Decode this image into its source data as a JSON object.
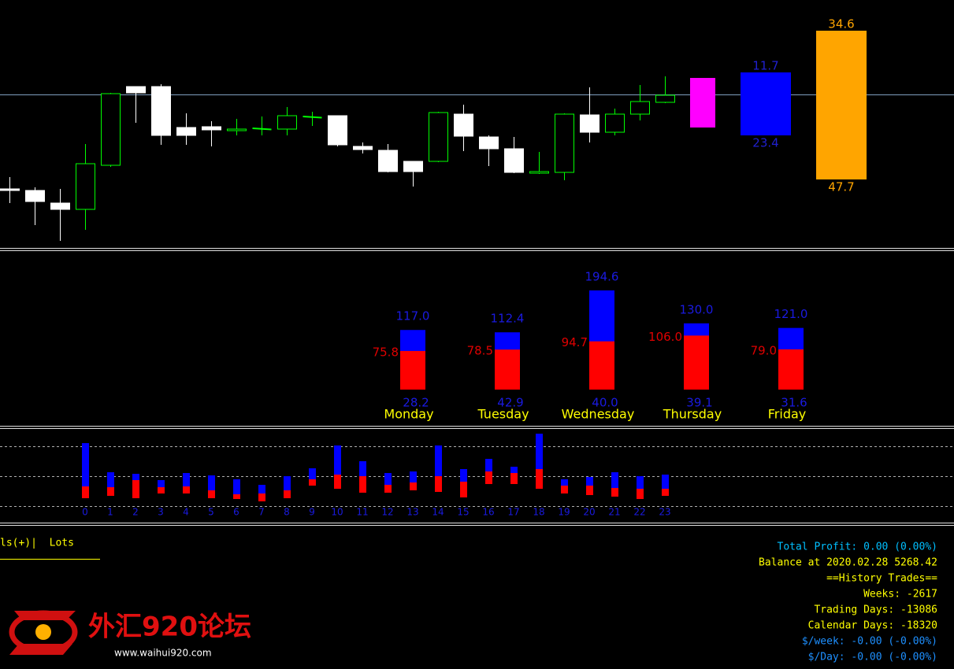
{
  "price_panel": {
    "ylim": [
      0,
      300
    ],
    "level": 195,
    "level_color": "#7f9fbf",
    "bull_color": "#00ff00",
    "bear_color": "#ffffff",
    "candles": [
      {
        "open": 75,
        "high": 90,
        "low": 57,
        "close": 73
      },
      {
        "open": 73,
        "high": 77,
        "low": 29,
        "close": 59
      },
      {
        "open": 57,
        "high": 75,
        "low": 9,
        "close": 49
      },
      {
        "open": 49,
        "high": 132,
        "low": 23,
        "close": 107
      },
      {
        "open": 105,
        "high": 197,
        "low": 103,
        "close": 196
      },
      {
        "open": 205,
        "high": 205,
        "low": 159,
        "close": 197
      },
      {
        "open": 205,
        "high": 208,
        "low": 131,
        "close": 143
      },
      {
        "open": 153,
        "high": 171,
        "low": 131,
        "close": 143
      },
      {
        "open": 154,
        "high": 161,
        "low": 129,
        "close": 150
      },
      {
        "open": 149,
        "high": 164,
        "low": 143,
        "close": 151
      },
      {
        "open": 151,
        "high": 167,
        "low": 143,
        "close": 152
      },
      {
        "open": 151,
        "high": 179,
        "low": 143,
        "close": 168
      },
      {
        "open": 166,
        "high": 173,
        "low": 155,
        "close": 167
      },
      {
        "open": 168,
        "high": 168,
        "low": 129,
        "close": 131
      },
      {
        "open": 129,
        "high": 134,
        "low": 120,
        "close": 125
      },
      {
        "open": 124,
        "high": 132,
        "low": 96,
        "close": 97
      },
      {
        "open": 110,
        "high": 110,
        "low": 78,
        "close": 97
      },
      {
        "open": 110,
        "high": 173,
        "low": 109,
        "close": 172
      },
      {
        "open": 170,
        "high": 182,
        "low": 123,
        "close": 142
      },
      {
        "open": 141,
        "high": 143,
        "low": 104,
        "close": 126
      },
      {
        "open": 126,
        "high": 141,
        "low": 95,
        "close": 96
      },
      {
        "open": 95,
        "high": 122,
        "low": 94,
        "close": 97
      },
      {
        "open": 96,
        "high": 171,
        "low": 86,
        "close": 170
      },
      {
        "open": 169,
        "high": 204,
        "low": 134,
        "close": 147
      },
      {
        "open": 147,
        "high": 177,
        "low": 143,
        "close": 170
      },
      {
        "open": 170,
        "high": 207,
        "low": 162,
        "close": 186
      },
      {
        "open": 185,
        "high": 218,
        "low": 184,
        "close": 194
      }
    ],
    "ranges": [
      {
        "top": 216,
        "bottom": 153,
        "color": "#ff00ff"
      },
      {
        "top": 223,
        "bottom": 143,
        "color": "#0000ff",
        "label_color": "#2020d0",
        "top_label": "11.7",
        "bottom_label": "23.4"
      },
      {
        "top": 276,
        "bottom": 87,
        "color": "#ffa500",
        "label_color": "#ffa500",
        "top_label": "34.6",
        "bottom_label": "47.7"
      }
    ]
  },
  "weekday_panel": {
    "ylim": [
      0,
      200
    ],
    "total_color": "#0000ff",
    "red_color": "#ff0000",
    "label_blue": "#1a1ae0",
    "label_red": "#e00000",
    "name_color": "#ffff00",
    "days": [
      {
        "name": "Monday",
        "total": 117,
        "total_label": "117.0",
        "red": 75.8,
        "low_label": "28.2"
      },
      {
        "name": "Tuesday",
        "total": 112.4,
        "total_label": "112.4",
        "red": 78.5,
        "low_label": "42.9"
      },
      {
        "name": "Wednesday",
        "total": 194.6,
        "total_label": "194.6",
        "red": 94.7,
        "low_label": "40.0"
      },
      {
        "name": "Thursday",
        "total": 130,
        "total_label": "130.0",
        "red": 106,
        "red_label": "106.0",
        "low_label": "39.1"
      },
      {
        "name": "Friday",
        "total": 121,
        "total_label": "121.0",
        "red": 79,
        "red_label": "79.0",
        "low_label": "31.6"
      }
    ]
  },
  "hour_panel": {
    "ylim": [
      -60,
      60
    ],
    "grid": [
      38,
      0,
      -38
    ],
    "up_color": "#0000ff",
    "down_color": "#ff0000",
    "label_color": "#1a1ae0",
    "hours": [
      {
        "label": "0",
        "high": 42,
        "mid": -13,
        "low": -28
      },
      {
        "label": "1",
        "high": 5,
        "mid": -14,
        "low": -25
      },
      {
        "label": "2",
        "high": 3,
        "mid": -5,
        "low": -28
      },
      {
        "label": "3",
        "high": -5,
        "mid": -14,
        "low": -22
      },
      {
        "label": "4",
        "high": 4,
        "mid": -13,
        "low": -22
      },
      {
        "label": "5",
        "high": 1,
        "mid": -18,
        "low": -28
      },
      {
        "label": "6",
        "high": -4,
        "mid": -23,
        "low": -29
      },
      {
        "label": "7",
        "high": -11,
        "mid": -22,
        "low": -32
      },
      {
        "label": "8",
        "high": 0,
        "mid": -18,
        "low": -28
      },
      {
        "label": "9",
        "high": 10,
        "mid": -4,
        "low": -12
      },
      {
        "label": "10",
        "high": 39,
        "mid": 2,
        "low": -16
      },
      {
        "label": "11",
        "high": 19,
        "mid": 0,
        "low": -21
      },
      {
        "label": "12",
        "high": 4,
        "mid": -11,
        "low": -21
      },
      {
        "label": "13",
        "high": 6,
        "mid": -8,
        "low": -18
      },
      {
        "label": "14",
        "high": 39,
        "mid": 0,
        "low": -20
      },
      {
        "label": "15",
        "high": 9,
        "mid": -7,
        "low": -27
      },
      {
        "label": "16",
        "high": 22,
        "mid": 6,
        "low": -10
      },
      {
        "label": "17",
        "high": 12,
        "mid": 4,
        "low": -10
      },
      {
        "label": "18",
        "high": 54,
        "mid": 9,
        "low": -16
      },
      {
        "label": "19",
        "high": -4,
        "mid": -12,
        "low": -22
      },
      {
        "label": "20",
        "high": -1,
        "mid": -12,
        "low": -24
      },
      {
        "label": "21",
        "high": 5,
        "mid": -15,
        "low": -26
      },
      {
        "label": "22",
        "high": 0,
        "mid": -16,
        "low": -29
      },
      {
        "label": "23",
        "high": 2,
        "mid": -16,
        "low": -25
      }
    ]
  },
  "footer": {
    "lots_header": "ls(+)|  Lots",
    "stats": [
      {
        "text": "Total Profit: 0.00 (0.00%)",
        "color": "#00bfff"
      },
      {
        "text": "Balance at 2020.02.28 5268.42",
        "color": "#ffff00"
      },
      {
        "text": "==History Trades==",
        "color": "#ffff00"
      },
      {
        "text": "Weeks: -2617",
        "color": "#ffff00"
      },
      {
        "text": "Trading Days: -13086",
        "color": "#ffff00"
      },
      {
        "text": "Calendar Days: -18320",
        "color": "#ffff00"
      },
      {
        "text": "$/week: -0.00 (-0.00%)",
        "color": "#1e90ff"
      },
      {
        "text": "$/Day: -0.00 (-0.00%)",
        "color": "#1e90ff"
      }
    ],
    "site_name": "外汇920论坛",
    "site_url": "www.waihui920.com"
  }
}
